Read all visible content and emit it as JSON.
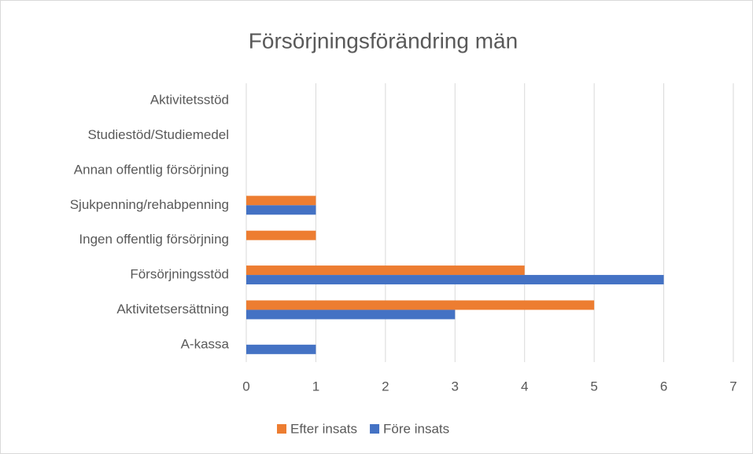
{
  "chart_data": {
    "type": "bar",
    "orientation": "horizontal",
    "title": "Försörjningsförändring män",
    "categories": [
      "Aktivitetsstöd",
      "Studiestöd/Studiemedel",
      "Annan offentlig försörjning",
      "Sjukpenning/rehabpenning",
      "Ingen offentlig försörjning",
      "Försörjningsstöd",
      "Aktivitetsersättning",
      "A-kassa"
    ],
    "series": [
      {
        "name": "Efter insats",
        "color": "#ed7d31",
        "values": [
          0,
          0,
          0,
          1,
          1,
          4,
          5,
          0
        ]
      },
      {
        "name": "Före insats",
        "color": "#4472c4",
        "values": [
          0,
          0,
          0,
          1,
          0,
          6,
          3,
          1
        ]
      }
    ],
    "xlim": [
      0,
      7
    ],
    "xticks": [
      0,
      1,
      2,
      3,
      4,
      5,
      6,
      7
    ],
    "grid": true,
    "legend": "bottom"
  }
}
